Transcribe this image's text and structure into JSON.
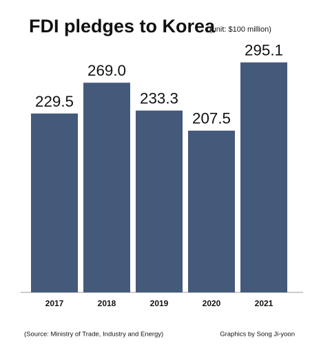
{
  "chart_data": {
    "type": "bar",
    "title": "FDI pledges to Korea",
    "subtitle": "(unit: $100 million)",
    "categories": [
      "2017",
      "2018",
      "2019",
      "2020",
      "2021"
    ],
    "values": [
      229.5,
      269.0,
      233.3,
      207.5,
      295.1
    ],
    "value_labels": [
      "229.5",
      "269.0",
      "233.3",
      "207.5",
      "295.1"
    ],
    "color": "#445a7a",
    "source": "(Source: Ministry of Trade, Industry and Energy)",
    "credit": "Graphics by Song Ji-yoon"
  }
}
